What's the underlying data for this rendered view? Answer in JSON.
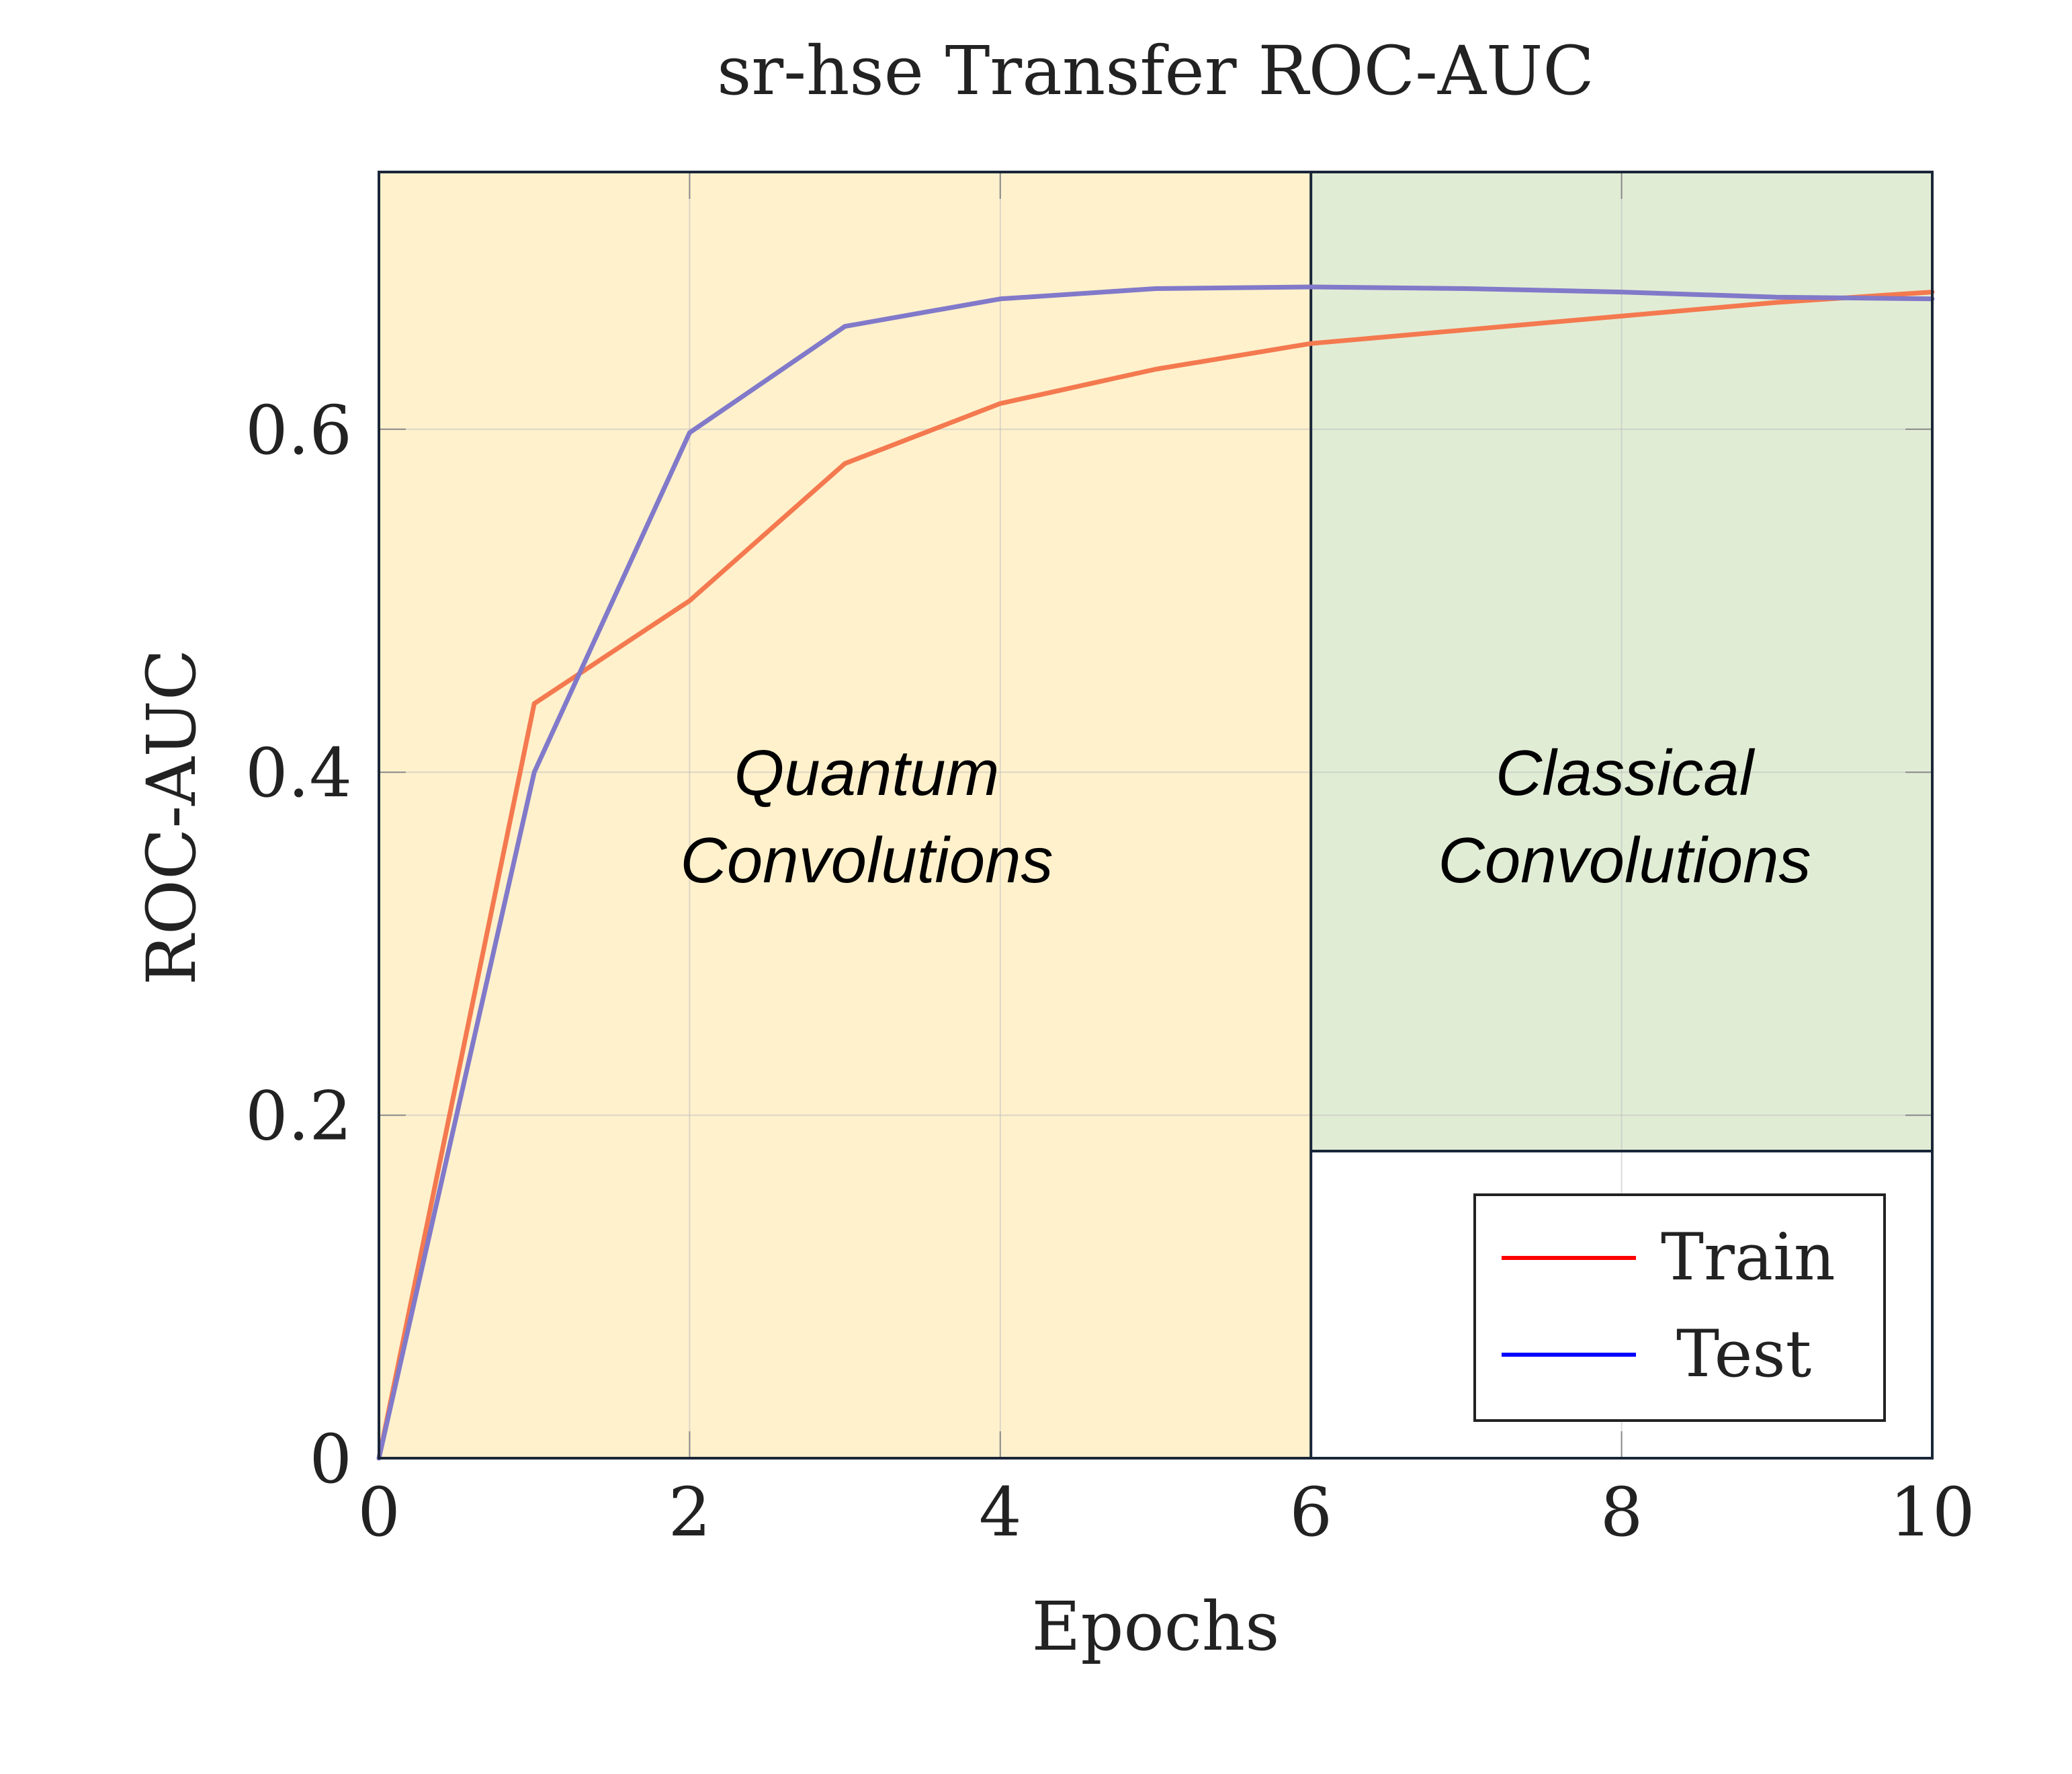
{
  "chart_data": {
    "type": "line",
    "title": "sr-hse Transfer ROC-AUC",
    "xlabel": "Epochs",
    "ylabel": "ROC-AUC",
    "xlim": [
      0,
      10
    ],
    "ylim": [
      0,
      0.75
    ],
    "xticks": [
      0,
      2,
      4,
      6,
      8,
      10
    ],
    "yticks": [
      0,
      0.2,
      0.4,
      0.6
    ],
    "grid": true,
    "legend_position": "bottom-right",
    "x": [
      0,
      1,
      2,
      3,
      4,
      5,
      6,
      7,
      8,
      9,
      10
    ],
    "series": [
      {
        "name": "Train",
        "color": "#f4794f",
        "legend_color": "#ff0000",
        "values": [
          0.0,
          0.44,
          0.5,
          0.58,
          0.615,
          0.635,
          0.65,
          0.658,
          0.666,
          0.674,
          0.68
        ]
      },
      {
        "name": "Test",
        "color": "#8179c9",
        "legend_color": "#0000ff",
        "values": [
          0.0,
          0.4,
          0.598,
          0.66,
          0.676,
          0.682,
          0.683,
          0.682,
          0.68,
          0.677,
          0.676
        ]
      }
    ],
    "regions": [
      {
        "x_start": 0,
        "x_end": 6,
        "color": "#fff1cc",
        "label_lines": [
          "Quantum",
          "Convolutions"
        ]
      },
      {
        "x_start": 6,
        "x_end": 10,
        "color": "#e1ecd5",
        "label_lines": [
          "Classical",
          "Convolutions"
        ]
      }
    ]
  }
}
